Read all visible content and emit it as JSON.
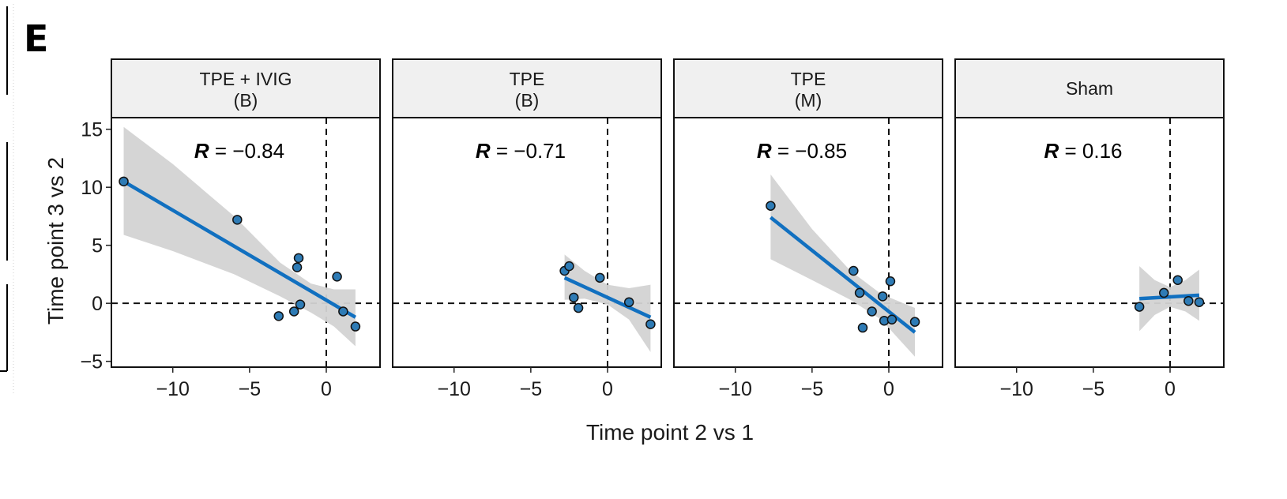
{
  "panel_label": "E",
  "chart_data": {
    "type": "scatter",
    "xlabel": "Time point 2 vs 1",
    "ylabel": "Time point 3 vs 2",
    "xlim": [
      -14,
      3.5
    ],
    "ylim": [
      -5.5,
      16
    ],
    "x_ticks": [
      -10,
      -5,
      0
    ],
    "y_ticks": [
      -5,
      0,
      5,
      10,
      15
    ],
    "grid": false,
    "reference_lines": {
      "x": 0,
      "y": 0,
      "style": "dashed"
    },
    "colors": {
      "point_fill": "#2e7bb5",
      "point_edge": "#111111",
      "fit_line": "#1170c0",
      "confidence_band": "#d3d3d3",
      "strip_fill": "#f0f0f0"
    },
    "facets": [
      {
        "label_line1": "TPE + IVIG",
        "label_line2": "(B)",
        "r_label": "R",
        "r_value": "= −0.84",
        "points": [
          [
            -13.2,
            10.5
          ],
          [
            -5.8,
            7.2
          ],
          [
            -1.8,
            3.9
          ],
          [
            -1.9,
            3.1
          ],
          [
            -1.7,
            -0.1
          ],
          [
            -2.1,
            -0.7
          ],
          [
            -3.1,
            -1.1
          ],
          [
            0.7,
            2.3
          ],
          [
            1.1,
            -0.7
          ],
          [
            1.9,
            -2.0
          ]
        ],
        "fit": {
          "x": [
            -13.2,
            1.9
          ],
          "y": [
            10.5,
            -1.2
          ]
        },
        "band": [
          [
            -13.2,
            5.9,
            15.2
          ],
          [
            -10,
            4.5,
            12.0
          ],
          [
            -6,
            2.5,
            7.5
          ],
          [
            -3,
            0.6,
            3.5
          ],
          [
            -1,
            -0.8,
            1.7
          ],
          [
            0.5,
            -2.0,
            1.2
          ],
          [
            1.9,
            -3.7,
            1.2
          ]
        ]
      },
      {
        "label_line1": "TPE",
        "label_line2": "(B)",
        "r_label": "R",
        "r_value": "= −0.71",
        "points": [
          [
            -2.8,
            2.8
          ],
          [
            -2.5,
            3.2
          ],
          [
            -2.2,
            0.5
          ],
          [
            -1.9,
            -0.4
          ],
          [
            -0.5,
            2.2
          ],
          [
            1.4,
            0.1
          ],
          [
            2.8,
            -1.8
          ]
        ],
        "fit": {
          "x": [
            -2.8,
            2.8
          ],
          "y": [
            2.2,
            -1.2
          ]
        },
        "band": [
          [
            -2.8,
            0.3,
            4.2
          ],
          [
            -1.5,
            0.4,
            2.8
          ],
          [
            0,
            -0.1,
            1.6
          ],
          [
            1.4,
            -1.4,
            1.3
          ],
          [
            2.8,
            -4.2,
            1.6
          ]
        ]
      },
      {
        "label_line1": "TPE",
        "label_line2": "(M)",
        "r_label": "R",
        "r_value": "= −0.85",
        "points": [
          [
            -7.7,
            8.4
          ],
          [
            -2.3,
            2.8
          ],
          [
            -1.9,
            0.9
          ],
          [
            -1.1,
            -0.7
          ],
          [
            -1.7,
            -2.1
          ],
          [
            -0.4,
            0.6
          ],
          [
            -0.3,
            -1.5
          ],
          [
            0.1,
            1.9
          ],
          [
            0.2,
            -1.4
          ],
          [
            1.7,
            -1.6
          ]
        ],
        "fit": {
          "x": [
            -7.7,
            1.7
          ],
          "y": [
            7.4,
            -2.5
          ]
        },
        "band": [
          [
            -7.7,
            3.8,
            11.1
          ],
          [
            -5,
            2.0,
            6.4
          ],
          [
            -2.5,
            0.3,
            2.8
          ],
          [
            -0.5,
            -1.4,
            0.8
          ],
          [
            1.7,
            -4.6,
            -0.4
          ]
        ]
      },
      {
        "label_line1": "Sham",
        "label_line2": "",
        "r_label": "R",
        "r_value": "= 0.16",
        "points": [
          [
            -2.0,
            -0.3
          ],
          [
            -0.4,
            0.9
          ],
          [
            0.5,
            2.0
          ],
          [
            1.2,
            0.2
          ],
          [
            1.9,
            0.1
          ]
        ],
        "fit": {
          "x": [
            -2.0,
            1.9
          ],
          "y": [
            0.4,
            0.7
          ]
        },
        "band": [
          [
            -2.0,
            -2.4,
            3.2
          ],
          [
            -1,
            -1.0,
            2.0
          ],
          [
            0,
            -0.3,
            1.4
          ],
          [
            1,
            -0.7,
            2.0
          ],
          [
            1.9,
            -1.5,
            2.9
          ]
        ]
      }
    ]
  }
}
